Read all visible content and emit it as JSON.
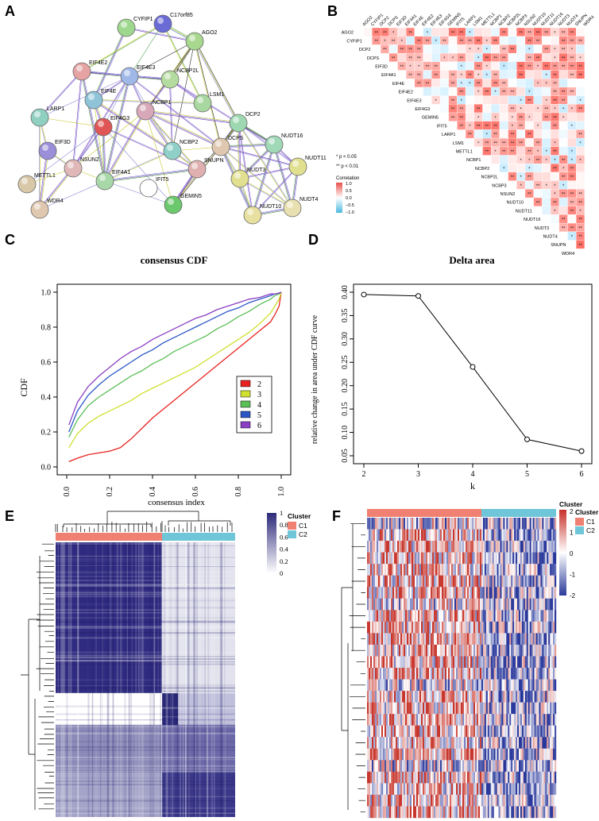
{
  "panels": {
    "a": {
      "letter": "A"
    },
    "b": {
      "letter": "B"
    },
    "c": {
      "letter": "C"
    },
    "d": {
      "letter": "D"
    },
    "e": {
      "letter": "E"
    },
    "f": {
      "letter": "F"
    }
  },
  "network": {
    "nodes": [
      "CYFIP1",
      "C17orf85",
      "AGO2",
      "EIF4E2",
      "EIF4E3",
      "NCBP2L",
      "EIF4E",
      "NCBP1",
      "LSM1",
      "LARP1",
      "EIF4G3",
      "DCP2",
      "EIF3D",
      "NCBP2",
      "DCPS",
      "NUDT16",
      "NSUN2",
      "SNUPN",
      "NUDT11",
      "METTL1",
      "EIF4A1",
      "IFIT5",
      "NUDT3",
      "GEMIN5",
      "WDR4",
      "NUDT10",
      "NUDT4"
    ],
    "colors": {
      "CYFIP1": "#9ed88e",
      "C17orf85": "#6b6bd6",
      "AGO2": "#a8d88e",
      "EIF4E2": "#e5a3a3",
      "EIF4E3": "#9fb8e8",
      "NCBP2L": "#b5dca0",
      "EIF4E": "#8fc4d8",
      "NCBP1": "#d8a8b8",
      "LSM1": "#a8d8a0",
      "LARP1": "#8fd0c0",
      "EIF4G3": "#e05555",
      "DCP2": "#9ed8b0",
      "EIF3D": "#9a8fd8",
      "NCBP2": "#8fd0c8",
      "DCPS": "#e0c8b0",
      "NUDT16": "#a0d8b8",
      "NSUN2": "#e0b8b8",
      "SNUPN": "#e0b0b0",
      "NUDT11": "#e0e090",
      "METTL1": "#d8c8a8",
      "EIF4A1": "#a8d8a8",
      "IFIT5": "#ffffff",
      "NUDT3": "#e0e090",
      "GEMIN5": "#6cc86c",
      "WDR4": "#e0c8b0",
      "NUDT10": "#e8e0a0",
      "NUDT4": "#e8e0b0"
    }
  },
  "correlation": {
    "genes": [
      "AGO2",
      "CYFIP1",
      "DCP2",
      "DCPS",
      "EIF3D",
      "EIF4A1",
      "EIF4E",
      "EIF4E2",
      "EIF4E3",
      "EIF4G3",
      "GEMIN5",
      "IFIT5",
      "LARP1",
      "LSM1",
      "METTL1",
      "NCBP1",
      "NCBP2",
      "NCBP2L",
      "NCBP3",
      "NSUN2",
      "NUDT10",
      "NUDT11",
      "NUDT16",
      "NUDT3",
      "NUDT4",
      "SNUPN",
      "WDR4"
    ],
    "legend_sig1": "* p < 0.05",
    "legend_sig2": "** p < 0.01",
    "colorbar_title": "Correlation",
    "colorbar_ticks": [
      "1.0",
      "0.5",
      "0.0",
      "−0.5",
      "−1.0"
    ],
    "high_color": "#e8706a",
    "low_color": "#5bc5e0"
  },
  "chart_data": [
    {
      "type": "line",
      "title": "consensus CDF",
      "xlabel": "",
      "ylabel": "CDF",
      "xlim": [
        0,
        1
      ],
      "ylim": [
        0,
        1
      ],
      "x_ticks": [
        "0.0",
        "0.2",
        "0.4",
        "0.6",
        "0.8",
        "1.0"
      ],
      "y_ticks": [
        "0.0",
        "0.2",
        "0.4",
        "0.6",
        "0.8",
        "1.0"
      ],
      "legend": "right",
      "x": [
        0.01,
        0.05,
        0.1,
        0.15,
        0.2,
        0.25,
        0.3,
        0.35,
        0.4,
        0.45,
        0.5,
        0.55,
        0.6,
        0.65,
        0.7,
        0.75,
        0.8,
        0.85,
        0.9,
        0.95,
        0.97,
        0.99,
        1.0
      ],
      "series": [
        {
          "name": "2",
          "color": "#e8231f",
          "values": [
            0.03,
            0.05,
            0.07,
            0.08,
            0.09,
            0.11,
            0.16,
            0.22,
            0.28,
            0.33,
            0.38,
            0.43,
            0.48,
            0.53,
            0.58,
            0.63,
            0.68,
            0.73,
            0.78,
            0.83,
            0.87,
            0.92,
            1.0
          ]
        },
        {
          "name": "3",
          "color": "#cfe02f",
          "values": [
            0.11,
            0.19,
            0.25,
            0.29,
            0.32,
            0.35,
            0.38,
            0.42,
            0.45,
            0.48,
            0.51,
            0.54,
            0.57,
            0.61,
            0.65,
            0.69,
            0.73,
            0.77,
            0.82,
            0.88,
            0.92,
            0.96,
            1.0
          ]
        },
        {
          "name": "4",
          "color": "#5bbf57",
          "values": [
            0.17,
            0.27,
            0.35,
            0.4,
            0.44,
            0.48,
            0.52,
            0.55,
            0.59,
            0.62,
            0.66,
            0.69,
            0.72,
            0.75,
            0.79,
            0.82,
            0.86,
            0.89,
            0.93,
            0.96,
            0.98,
            0.99,
            1.0
          ]
        },
        {
          "name": "5",
          "color": "#2a56c6",
          "values": [
            0.2,
            0.32,
            0.41,
            0.47,
            0.52,
            0.56,
            0.6,
            0.64,
            0.67,
            0.71,
            0.74,
            0.77,
            0.8,
            0.83,
            0.86,
            0.89,
            0.91,
            0.94,
            0.96,
            0.98,
            0.99,
            0.995,
            1.0
          ]
        },
        {
          "name": "6",
          "color": "#8b3fc4",
          "values": [
            0.24,
            0.37,
            0.46,
            0.52,
            0.57,
            0.62,
            0.66,
            0.69,
            0.73,
            0.76,
            0.79,
            0.82,
            0.85,
            0.87,
            0.9,
            0.92,
            0.94,
            0.96,
            0.97,
            0.99,
            0.99,
            0.995,
            1.0
          ]
        }
      ]
    },
    {
      "type": "line",
      "title": "Delta area",
      "xlabel": "k",
      "ylabel": "relative change in area under CDF curve",
      "xlim": [
        2,
        6
      ],
      "ylim": [
        0.05,
        0.4
      ],
      "x_ticks": [
        "2",
        "3",
        "4",
        "5",
        "6"
      ],
      "y_ticks": [
        "0.05",
        "0.10",
        "0.15",
        "0.20",
        "0.25",
        "0.30",
        "0.35",
        "0.40"
      ],
      "x": [
        2,
        3,
        4,
        5,
        6
      ],
      "values": [
        0.395,
        0.392,
        0.24,
        0.085,
        0.06
      ]
    },
    {
      "type": "heatmap",
      "title": "consensus index",
      "legend_title": "Cluster",
      "categories": [
        "C1",
        "C2"
      ],
      "category_colors": [
        "#f08072",
        "#6ec6d8"
      ],
      "colorbar_ticks": [
        "1",
        "0.8",
        "0.6",
        "0.4",
        "0.2",
        "0"
      ],
      "colorbar_color": "#2d2a7a"
    },
    {
      "type": "heatmap",
      "title": "",
      "legend_title": "Cluster",
      "categories": [
        "C1",
        "C2"
      ],
      "category_colors": [
        "#f08072",
        "#6ec6d8"
      ],
      "colorbar_ticks": [
        "2",
        "1",
        "0",
        "-1",
        "-2"
      ],
      "high_color": "#c8302a",
      "low_color": "#2a3a9a"
    }
  ]
}
